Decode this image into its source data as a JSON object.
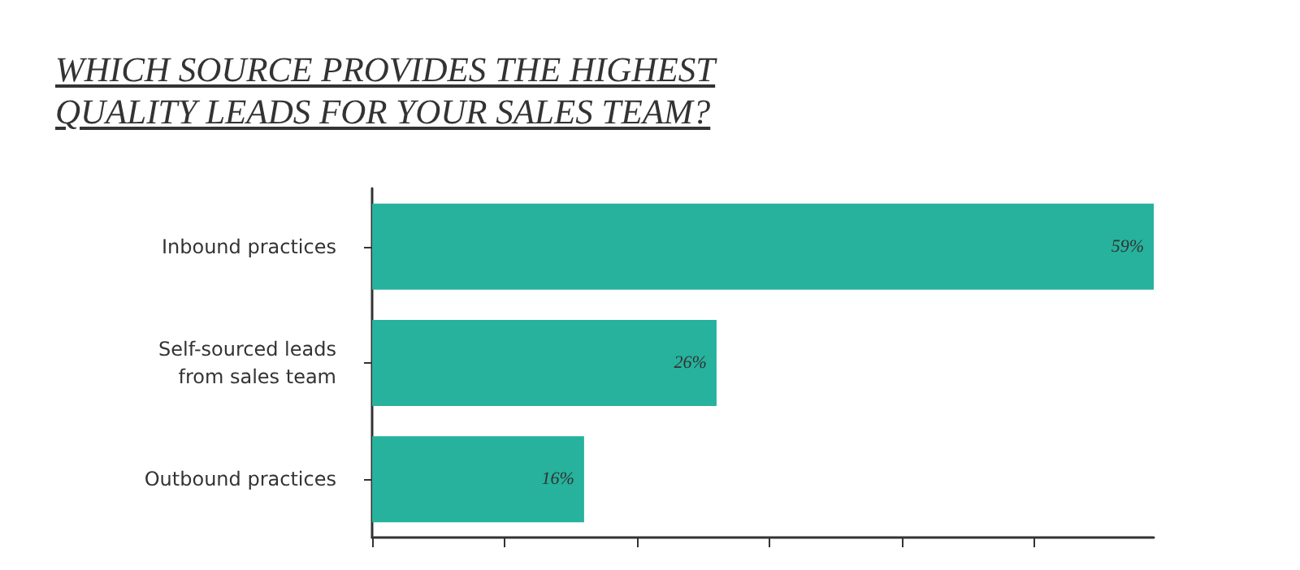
{
  "chart_data": {
    "type": "bar",
    "orientation": "horizontal",
    "title": "WHICH SOURCE PROVIDES THE HIGHEST QUALITY LEADS FOR YOUR SALES TEAM?",
    "categories": [
      "Inbound practices",
      "Self-sourced leads\nfrom sales team",
      "Outbound practices"
    ],
    "values": [
      59,
      26,
      16
    ],
    "value_labels": [
      "59%",
      "26%",
      "16%"
    ],
    "color": "#26b29d",
    "xlim": [
      0,
      59
    ],
    "xticks": [
      {
        "value": 0,
        "label": null
      },
      {
        "value": 10,
        "label": null
      },
      {
        "value": 20,
        "label": null
      },
      {
        "value": 30,
        "label": null
      },
      {
        "value": 40,
        "label": null
      },
      {
        "value": 50,
        "label": null
      }
    ],
    "tick_labels": "y",
    "grid": false
  }
}
